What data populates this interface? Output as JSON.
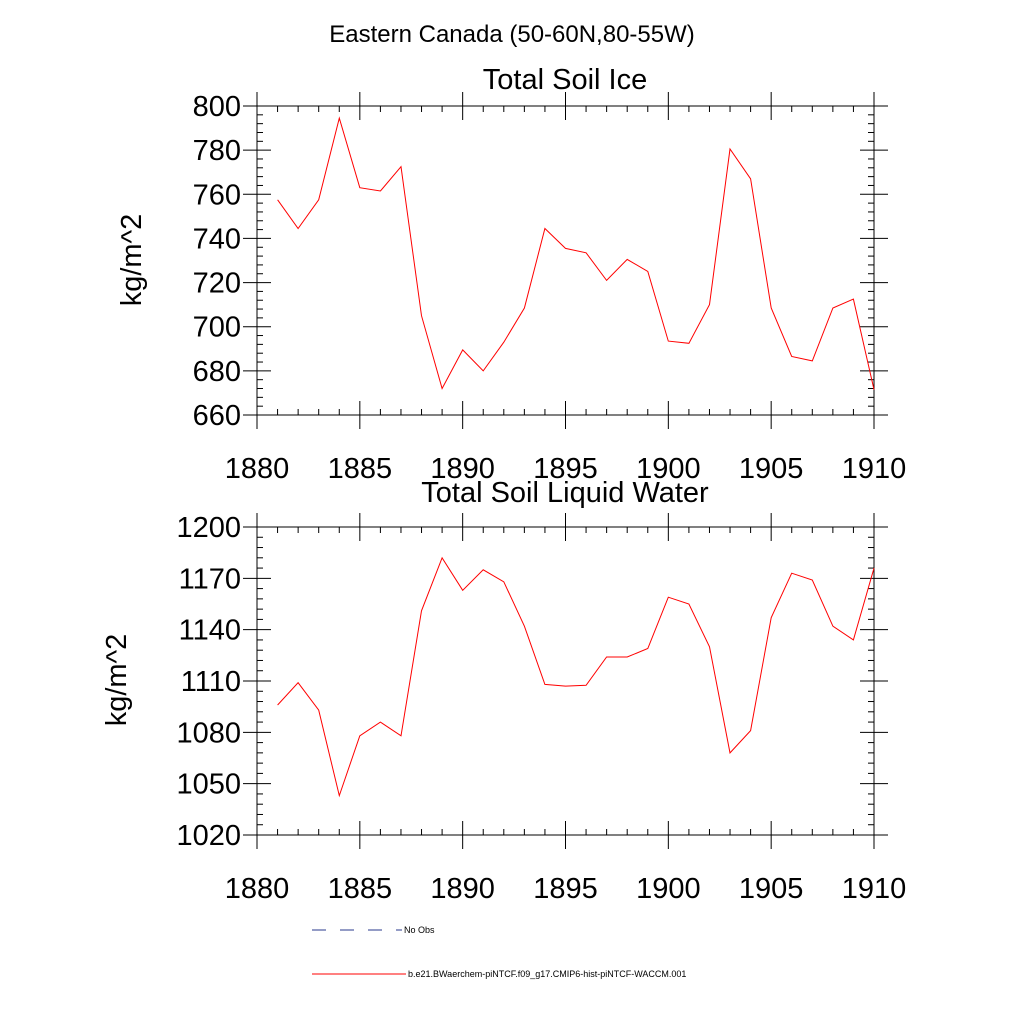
{
  "figure_title": "Eastern Canada (50-60N,80-55W)",
  "chart_data": [
    {
      "type": "line",
      "title": "Total Soil Ice",
      "xlabel": "",
      "ylabel": "kg/m^2",
      "xlim": [
        1880,
        1910
      ],
      "ylim": [
        660,
        800
      ],
      "x_ticks": [
        1880,
        1885,
        1890,
        1895,
        1900,
        1905,
        1910
      ],
      "y_ticks": [
        660,
        680,
        700,
        720,
        740,
        760,
        780,
        800
      ],
      "x": [
        1881,
        1882,
        1883,
        1884,
        1885,
        1886,
        1887,
        1888,
        1889,
        1890,
        1891,
        1892,
        1893,
        1894,
        1895,
        1896,
        1897,
        1898,
        1899,
        1900,
        1901,
        1902,
        1903,
        1904,
        1905,
        1906,
        1907,
        1908,
        1909,
        1910
      ],
      "series": [
        {
          "name": "b.e21.BWaerchem-piNTCF.f09_g17.CMIP6-hist-piNTCF-WACCM.001",
          "color": "#ff0000",
          "values": [
            757.5,
            744.5,
            757.5,
            794.5,
            763,
            761.5,
            772.5,
            705,
            672,
            689.5,
            680,
            693,
            708.5,
            744.5,
            735.5,
            733.5,
            721,
            730.5,
            725,
            693.5,
            692.5,
            710,
            780.5,
            767,
            708.5,
            686.5,
            684.5,
            708.5,
            712.5,
            671.5
          ]
        }
      ]
    },
    {
      "type": "line",
      "title": "Total Soil Liquid Water",
      "xlabel": "",
      "ylabel": "kg/m^2",
      "xlim": [
        1880,
        1910
      ],
      "ylim": [
        1020,
        1200
      ],
      "x_ticks": [
        1880,
        1885,
        1890,
        1895,
        1900,
        1905,
        1910
      ],
      "y_ticks": [
        1020,
        1050,
        1080,
        1110,
        1140,
        1170,
        1200
      ],
      "x": [
        1881,
        1882,
        1883,
        1884,
        1885,
        1886,
        1887,
        1888,
        1889,
        1890,
        1891,
        1892,
        1893,
        1894,
        1895,
        1896,
        1897,
        1898,
        1899,
        1900,
        1901,
        1902,
        1903,
        1904,
        1905,
        1906,
        1907,
        1908,
        1909,
        1910
      ],
      "series": [
        {
          "name": "b.e21.BWaerchem-piNTCF.f09_g17.CMIP6-hist-piNTCF-WACCM.001",
          "color": "#ff0000",
          "values": [
            1096,
            1109,
            1093,
            1043,
            1078,
            1086,
            1078,
            1151,
            1182,
            1163,
            1175,
            1168,
            1142,
            1108,
            1107,
            1107.5,
            1124,
            1124,
            1129,
            1159,
            1155,
            1130,
            1068,
            1081,
            1147,
            1173,
            1169,
            1142,
            1134,
            1176
          ]
        }
      ]
    }
  ],
  "legend": {
    "obs_label": "No Obs",
    "obs_color": "#2a3a8c",
    "model_label": "b.e21.BWaerchem-piNTCF.f09_g17.CMIP6-hist-piNTCF-WACCM.001",
    "model_color": "#ff0000"
  }
}
